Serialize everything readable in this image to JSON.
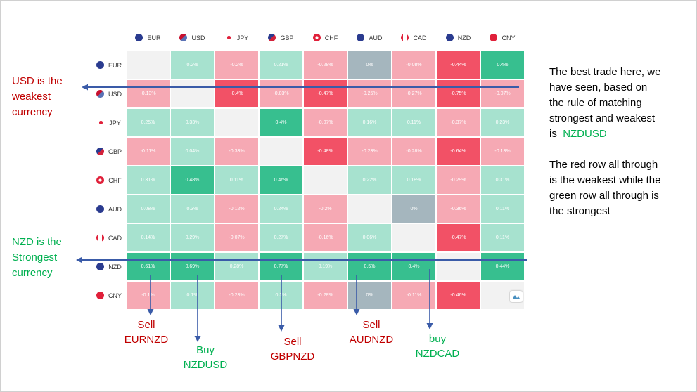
{
  "currencies": [
    "EUR",
    "USD",
    "JPY",
    "GBP",
    "CHF",
    "AUD",
    "CAD",
    "NZD",
    "CNY"
  ],
  "flag_colors": {
    "EUR": [
      "#2a3b8f",
      "#2a3b8f"
    ],
    "USD": [
      "#c8102e",
      "#5a72b5"
    ],
    "JPY": [
      "#ffffff",
      "#e0203a"
    ],
    "GBP": [
      "#2a3b8f",
      "#d3213a"
    ],
    "CHF": [
      "#e0203a",
      "#e0203a"
    ],
    "AUD": [
      "#2a3b8f",
      "#2a3b8f"
    ],
    "CAD": [
      "#ffffff",
      "#e0203a"
    ],
    "NZD": [
      "#2a3b8f",
      "#2a3b8f"
    ],
    "CNY": [
      "#e0203a",
      "#e0203a"
    ]
  },
  "cell_colors": {
    "strong_green": "#37bf8f",
    "light_green": "#a7e2cf",
    "light_red": "#f6a9b4",
    "strong_red": "#f25166",
    "gray": "#a5b6be",
    "empty": "#f2f2f2"
  },
  "matrix": [
    {
      "row": "EUR",
      "cells": [
        [
          "",
          "empty"
        ],
        [
          "0.2%",
          "light_green"
        ],
        [
          "-0.2%",
          "light_red"
        ],
        [
          "0.21%",
          "light_green"
        ],
        [
          "-0.28%",
          "light_red"
        ],
        [
          "0%",
          "gray"
        ],
        [
          "-0.08%",
          "light_red"
        ],
        [
          "-0.44%",
          "strong_red"
        ],
        [
          "0.4%",
          "strong_green"
        ]
      ]
    },
    {
      "row": "USD",
      "cells": [
        [
          "-0.13%",
          "light_red"
        ],
        [
          "",
          "empty"
        ],
        [
          "-0.4%",
          "strong_red"
        ],
        [
          "-0.03%",
          "light_red"
        ],
        [
          "-0.47%",
          "strong_red"
        ],
        [
          "-0.25%",
          "light_red"
        ],
        [
          "-0.27%",
          "light_red"
        ],
        [
          "-0.75%",
          "strong_red"
        ],
        [
          "-0.07%",
          "light_red"
        ]
      ]
    },
    {
      "row": "JPY",
      "cells": [
        [
          "0.25%",
          "light_green"
        ],
        [
          "0.33%",
          "light_green"
        ],
        [
          "",
          "empty"
        ],
        [
          "0.4%",
          "strong_green"
        ],
        [
          "-0.07%",
          "light_red"
        ],
        [
          "0.16%",
          "light_green"
        ],
        [
          "0.11%",
          "light_green"
        ],
        [
          "-0.37%",
          "light_red"
        ],
        [
          "0.23%",
          "light_green"
        ]
      ]
    },
    {
      "row": "GBP",
      "cells": [
        [
          "-0.11%",
          "light_red"
        ],
        [
          "0.04%",
          "light_green"
        ],
        [
          "-0.33%",
          "light_red"
        ],
        [
          "",
          "empty"
        ],
        [
          "-0.48%",
          "strong_red"
        ],
        [
          "-0.23%",
          "light_red"
        ],
        [
          "-0.28%",
          "light_red"
        ],
        [
          "-0.64%",
          "strong_red"
        ],
        [
          "-0.13%",
          "light_red"
        ]
      ]
    },
    {
      "row": "CHF",
      "cells": [
        [
          "0.31%",
          "light_green"
        ],
        [
          "0.48%",
          "strong_green"
        ],
        [
          "0.11%",
          "light_green"
        ],
        [
          "0.46%",
          "strong_green"
        ],
        [
          "",
          "empty"
        ],
        [
          "0.22%",
          "light_green"
        ],
        [
          "0.18%",
          "light_green"
        ],
        [
          "-0.29%",
          "light_red"
        ],
        [
          "0.31%",
          "light_green"
        ]
      ]
    },
    {
      "row": "AUD",
      "cells": [
        [
          "0.08%",
          "light_green"
        ],
        [
          "0.3%",
          "light_green"
        ],
        [
          "-0.12%",
          "light_red"
        ],
        [
          "0.24%",
          "light_green"
        ],
        [
          "-0.2%",
          "light_red"
        ],
        [
          "",
          "empty"
        ],
        [
          "0%",
          "gray"
        ],
        [
          "-0.36%",
          "light_red"
        ],
        [
          "0.11%",
          "light_green"
        ]
      ]
    },
    {
      "row": "CAD",
      "cells": [
        [
          "0.14%",
          "light_green"
        ],
        [
          "0.29%",
          "light_green"
        ],
        [
          "-0.07%",
          "light_red"
        ],
        [
          "0.27%",
          "light_green"
        ],
        [
          "-0.16%",
          "light_red"
        ],
        [
          "0.06%",
          "light_green"
        ],
        [
          "",
          "empty"
        ],
        [
          "-0.47%",
          "strong_red"
        ],
        [
          "0.11%",
          "light_green"
        ]
      ]
    },
    {
      "row": "NZD",
      "cells": [
        [
          "0.61%",
          "strong_green"
        ],
        [
          "0.69%",
          "strong_green"
        ],
        [
          "0.28%",
          "light_green"
        ],
        [
          "0.77%",
          "strong_green"
        ],
        [
          "0.19%",
          "light_green"
        ],
        [
          "0.5%",
          "strong_green"
        ],
        [
          "0.4%",
          "strong_green"
        ],
        [
          "",
          "empty"
        ],
        [
          "0.44%",
          "strong_green"
        ]
      ]
    },
    {
      "row": "CNY",
      "cells": [
        [
          "-0.1%",
          "light_red"
        ],
        [
          "0.1%",
          "light_green"
        ],
        [
          "-0.23%",
          "light_red"
        ],
        [
          "0.3%",
          "light_green"
        ],
        [
          "-0.28%",
          "light_red"
        ],
        [
          "0%",
          "gray"
        ],
        [
          "-0.11%",
          "light_red"
        ],
        [
          "-0.46%",
          "strong_red"
        ],
        [
          "",
          "empty"
        ]
      ]
    }
  ],
  "left_notes": {
    "weakest": [
      "USD is the",
      "weakest",
      "currency"
    ],
    "strongest": [
      "NZD is the",
      "Strongest",
      "currency"
    ]
  },
  "right_note": {
    "para1_lines": [
      "The best trade here, we",
      "have seen, based on",
      "the rule of matching",
      "strongest  and weakest"
    ],
    "para1_prefix": "is",
    "pair": "NZDUSD",
    "para2_lines": [
      "The red row all through",
      "is the weakest while the",
      "green row all through is",
      "the strongest"
    ]
  },
  "trades": [
    {
      "action": "Sell",
      "pair": "EURNZD",
      "color": "red"
    },
    {
      "action": "Buy",
      "pair": "NZDUSD",
      "color": "green"
    },
    {
      "action": "Sell",
      "pair": "GBPNZD",
      "color": "red"
    },
    {
      "action": "Sell",
      "pair": "AUDNZD",
      "color": "red"
    },
    {
      "action": "buy",
      "pair": "NZDCAD",
      "color": "green"
    }
  ],
  "arrow_color": "#3a5ba8",
  "text_colors": {
    "red": "#c00000",
    "green": "#00b050"
  }
}
